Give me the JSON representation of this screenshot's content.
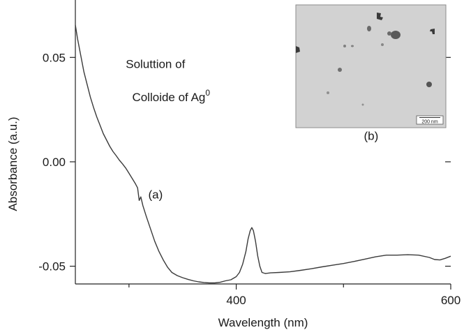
{
  "chart_data": {
    "type": "line",
    "title": "",
    "xlabel": "Wavelength (nm)",
    "ylabel": "Absorbance (a.u.)",
    "xlim": [
      250,
      600
    ],
    "ylim": [
      -0.0585,
      0.0775
    ],
    "x_ticks_major": [
      400,
      600
    ],
    "x_ticks_minor": [
      300,
      500
    ],
    "x_tick_labels": [
      "400",
      "600"
    ],
    "y_ticks": [
      -0.05,
      0.0,
      0.05
    ],
    "y_tick_labels": [
      "-0.05",
      "0.00",
      "0.05"
    ],
    "grid": false,
    "series": [
      {
        "color": "#3a3a3a",
        "points": [
          [
            250,
            0.0655
          ],
          [
            252,
            0.059
          ],
          [
            255,
            0.051
          ],
          [
            258,
            0.043
          ],
          [
            261,
            0.037
          ],
          [
            264,
            0.031
          ],
          [
            267,
            0.026
          ],
          [
            270,
            0.0215
          ],
          [
            273,
            0.0175
          ],
          [
            276,
            0.0135
          ],
          [
            279,
            0.0105
          ],
          [
            282,
            0.0075
          ],
          [
            285,
            0.005
          ],
          [
            288,
            0.003
          ],
          [
            291,
            0.0008
          ],
          [
            294,
            -0.001
          ],
          [
            297,
            -0.003
          ],
          [
            300,
            -0.0055
          ],
          [
            303,
            -0.008
          ],
          [
            306,
            -0.0105
          ],
          [
            308,
            -0.0125
          ],
          [
            309.5,
            -0.0185
          ],
          [
            311,
            -0.0168
          ],
          [
            313,
            -0.021
          ],
          [
            316,
            -0.026
          ],
          [
            320,
            -0.032
          ],
          [
            324,
            -0.038
          ],
          [
            328,
            -0.043
          ],
          [
            332,
            -0.047
          ],
          [
            336,
            -0.0505
          ],
          [
            340,
            -0.053
          ],
          [
            345,
            -0.0545
          ],
          [
            350,
            -0.0555
          ],
          [
            355,
            -0.0563
          ],
          [
            360,
            -0.057
          ],
          [
            365,
            -0.0575
          ],
          [
            370,
            -0.0578
          ],
          [
            375,
            -0.058
          ],
          [
            380,
            -0.058
          ],
          [
            385,
            -0.0577
          ],
          [
            390,
            -0.057
          ],
          [
            395,
            -0.0565
          ],
          [
            400,
            -0.055
          ],
          [
            403,
            -0.053
          ],
          [
            406,
            -0.049
          ],
          [
            409,
            -0.043
          ],
          [
            411,
            -0.037
          ],
          [
            413,
            -0.033
          ],
          [
            414.5,
            -0.0315
          ],
          [
            416,
            -0.033
          ],
          [
            418,
            -0.038
          ],
          [
            420,
            -0.045
          ],
          [
            422,
            -0.05
          ],
          [
            424,
            -0.053
          ],
          [
            427,
            -0.0535
          ],
          [
            432,
            -0.0532
          ],
          [
            440,
            -0.053
          ],
          [
            450,
            -0.0527
          ],
          [
            460,
            -0.052
          ],
          [
            470,
            -0.0512
          ],
          [
            480,
            -0.0503
          ],
          [
            490,
            -0.0495
          ],
          [
            500,
            -0.0487
          ],
          [
            510,
            -0.0477
          ],
          [
            520,
            -0.0466
          ],
          [
            530,
            -0.0455
          ],
          [
            540,
            -0.0447
          ],
          [
            550,
            -0.0447
          ],
          [
            560,
            -0.0445
          ],
          [
            570,
            -0.0447
          ],
          [
            580,
            -0.0458
          ],
          [
            585,
            -0.0468
          ],
          [
            590,
            -0.047
          ],
          [
            595,
            -0.0462
          ],
          [
            600,
            -0.0452
          ]
        ]
      }
    ],
    "annotations": [
      {
        "text": "(a)",
        "x": 318,
        "y": -0.0175
      },
      {
        "text": "(b)",
        "x": 519,
        "y": 0.0105
      },
      {
        "text": "Soluttion of",
        "x": 297,
        "y": 0.045
      },
      {
        "text": "Colloide of Ag",
        "superscript": "0",
        "x": 303,
        "y": 0.029
      }
    ]
  },
  "inset": {
    "description_label": "TEM micrograph",
    "scale_bar_label": "200 nm"
  }
}
